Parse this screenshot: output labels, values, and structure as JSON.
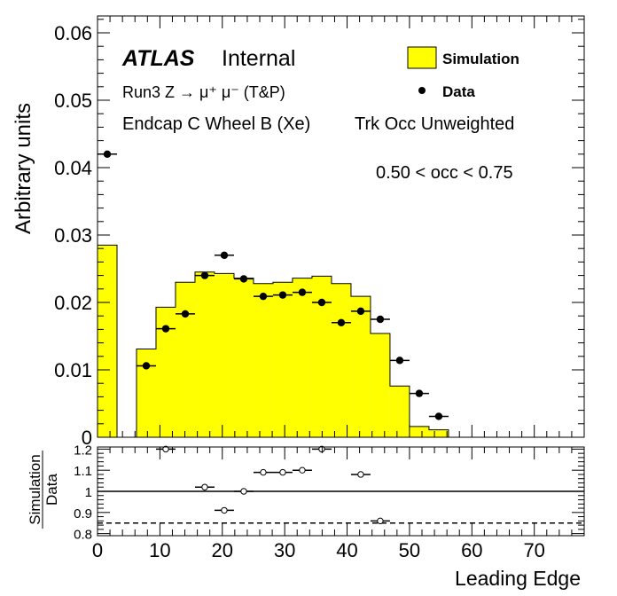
{
  "chart_data": [
    {
      "type": "histogram",
      "xlabel": "Leading Edge",
      "ylabel": "Arbitrary units",
      "xlim": [
        0,
        78
      ],
      "ylim": [
        0,
        0.0625
      ],
      "y_ticks": [
        0,
        0.01,
        0.02,
        0.03,
        0.04,
        0.05,
        0.06
      ],
      "y_tick_labels": [
        "0",
        "0.01",
        "0.02",
        "0.03",
        "0.04",
        "0.05",
        "0.06"
      ],
      "annotations": {
        "atlas": "ATLAS",
        "internal": "Internal",
        "line1": "Run3 Z → μ⁺ μ⁻ (T&P)",
        "line2": "Endcap C Wheel B (Xe)",
        "line3": "Trk Occ Unweighted",
        "line4": "0.50 < occ < 0.75"
      },
      "legend": {
        "position": "top-right",
        "entries": [
          "Simulation",
          "Data"
        ]
      },
      "simulation": {
        "name": "Simulation",
        "color": "#ffff00",
        "bin_edges": [
          0,
          3.125,
          6.25,
          9.375,
          12.5,
          15.625,
          18.75,
          21.875,
          25,
          28.125,
          31.25,
          34.375,
          37.5,
          40.625,
          43.75,
          46.875,
          50,
          53.125,
          56.25
        ],
        "values": [
          0.0285,
          0,
          0.0131,
          0.0193,
          0.023,
          0.0245,
          0.0243,
          0.0236,
          0.0228,
          0.023,
          0.0236,
          0.0239,
          0.0228,
          0.0209,
          0.0154,
          0.0076,
          0.0016,
          0.0011
        ]
      },
      "data": {
        "name": "Data",
        "x": [
          1.5625,
          7.8125,
          10.9375,
          14.0625,
          17.1875,
          20.3125,
          23.4375,
          26.5625,
          29.6875,
          32.8125,
          35.9375,
          39.0625,
          42.1875,
          45.3125,
          48.4375,
          51.5625,
          54.6875
        ],
        "y": [
          0.042,
          0.0106,
          0.0161,
          0.0183,
          0.024,
          0.027,
          0.0235,
          0.0209,
          0.0211,
          0.0215,
          0.02,
          0.017,
          0.0187,
          0.0175,
          0.0114,
          0.0065,
          0.0031
        ]
      }
    },
    {
      "type": "scatter",
      "ylabel": "Simulation/Data",
      "ylabel_top": "Simulation",
      "ylabel_bottom": "Data",
      "xlabel": "Leading Edge",
      "xlim": [
        0,
        78
      ],
      "ylim": [
        0.79,
        1.21
      ],
      "x_ticks": [
        0,
        10,
        20,
        30,
        40,
        50,
        60,
        70
      ],
      "x_tick_labels": [
        "0",
        "10",
        "20",
        "30",
        "40",
        "50",
        "60",
        "70"
      ],
      "y_ticks": [
        0.8,
        0.9,
        1,
        1.1,
        1.2
      ],
      "y_tick_labels": [
        "0.8",
        "0.9",
        "1",
        "1.1",
        "1.2"
      ],
      "reference_lines": [
        1.0,
        0.85
      ],
      "x": [
        10.9375,
        17.1875,
        20.3125,
        23.4375,
        26.5625,
        29.6875,
        32.8125,
        35.9375,
        42.1875,
        45.3125
      ],
      "y": [
        1.2,
        1.02,
        0.91,
        1.0,
        1.09,
        1.09,
        1.1,
        1.2,
        1.08,
        0.86
      ]
    }
  ]
}
